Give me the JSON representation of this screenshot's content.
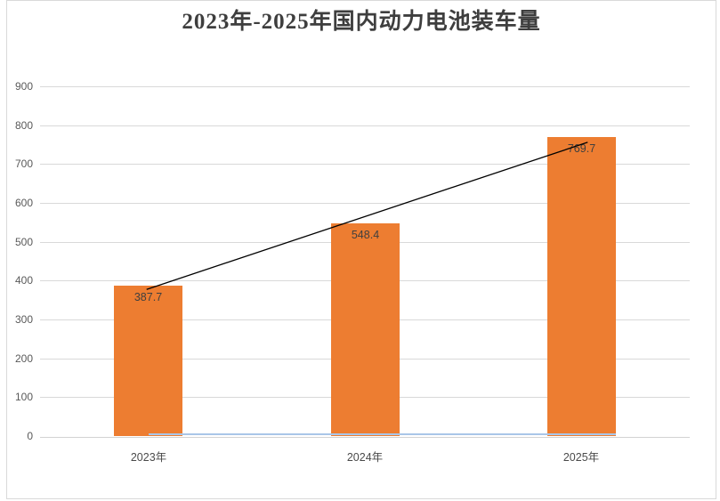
{
  "chart_data": {
    "type": "bar",
    "title": "2023年-2025年国内动力电池装车量",
    "categories": [
      "2023年",
      "2024年",
      "2025年"
    ],
    "values": [
      387.7,
      548.4,
      769.7
    ],
    "data_labels": [
      "387.7",
      "548.4",
      "769.7"
    ],
    "xlabel": "",
    "ylabel": "",
    "ylim": [
      0,
      900
    ],
    "ytick_step": 100,
    "yticks": [
      0,
      100,
      200,
      300,
      400,
      500,
      600,
      700,
      800,
      900
    ],
    "grid": true,
    "legend": false,
    "annotations": [
      {
        "type": "trend-line",
        "from_value": 387.7,
        "to_value": 769.7,
        "from_category": "2023年",
        "to_category": "2025年"
      }
    ],
    "colors": {
      "bar": "#ed7d31",
      "gridline": "#d9d9d9",
      "axis_line_gray": "#d3d3d3",
      "axis_line_blue": "#a9c6e8",
      "trend_line": "#000000",
      "title_text": "#3e3e3e",
      "y_tick_text": "#595959",
      "x_label_text": "#4a4a4a",
      "data_label_text": "#3f3f3f",
      "border": "#d9d9d9",
      "background": "#ffffff"
    }
  }
}
